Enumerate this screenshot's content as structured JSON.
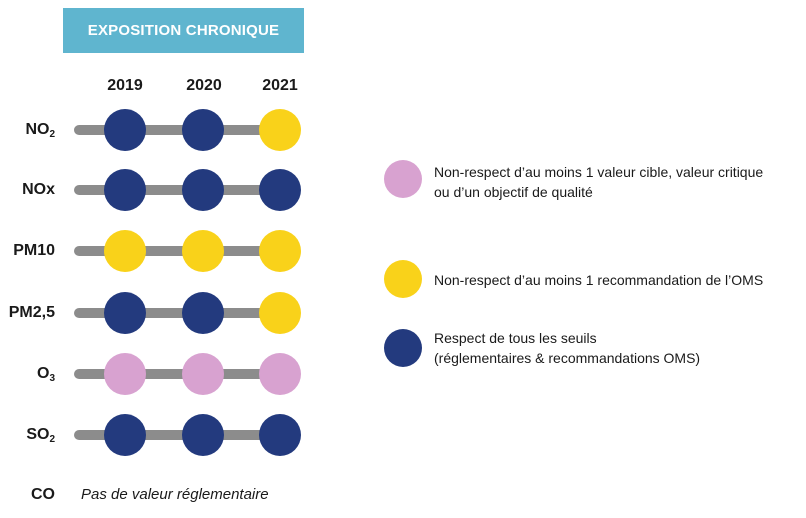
{
  "header": {
    "title": "EXPOSITION CHRONIQUE",
    "color": "#5fb5cf"
  },
  "years": [
    "2019",
    "2020",
    "2021"
  ],
  "status_colors": {
    "target_value": "#d8a2d0",
    "who": "#f9d21a",
    "compliant": "#233a7e"
  },
  "pollutants": [
    {
      "base": "NO",
      "sub": "2",
      "statuses": [
        "compliant",
        "compliant",
        "who"
      ]
    },
    {
      "base": "NOx",
      "sub": "",
      "statuses": [
        "compliant",
        "compliant",
        "compliant"
      ]
    },
    {
      "base": "PM10",
      "sub": "",
      "statuses": [
        "who",
        "who",
        "who"
      ]
    },
    {
      "base": "PM2,5",
      "sub": "",
      "statuses": [
        "compliant",
        "compliant",
        "who"
      ]
    },
    {
      "base": "O",
      "sub": "3",
      "statuses": [
        "target_value",
        "target_value",
        "target_value"
      ]
    },
    {
      "base": "SO",
      "sub": "2",
      "statuses": [
        "compliant",
        "compliant",
        "compliant"
      ]
    }
  ],
  "co": {
    "label": "CO",
    "note": "Pas de valeur réglementaire"
  },
  "legend": [
    {
      "status": "target_value",
      "lines": [
        "Non-respect d’au moins 1 valeur cible, valeur critique",
        "ou d’un objectif de qualité"
      ]
    },
    {
      "status": "who",
      "lines": [
        "Non-respect d’au moins 1 recommandation de l’OMS"
      ]
    },
    {
      "status": "compliant",
      "lines": [
        "Respect de tous les seuils",
        "(réglementaires & recommandations OMS)"
      ]
    }
  ]
}
